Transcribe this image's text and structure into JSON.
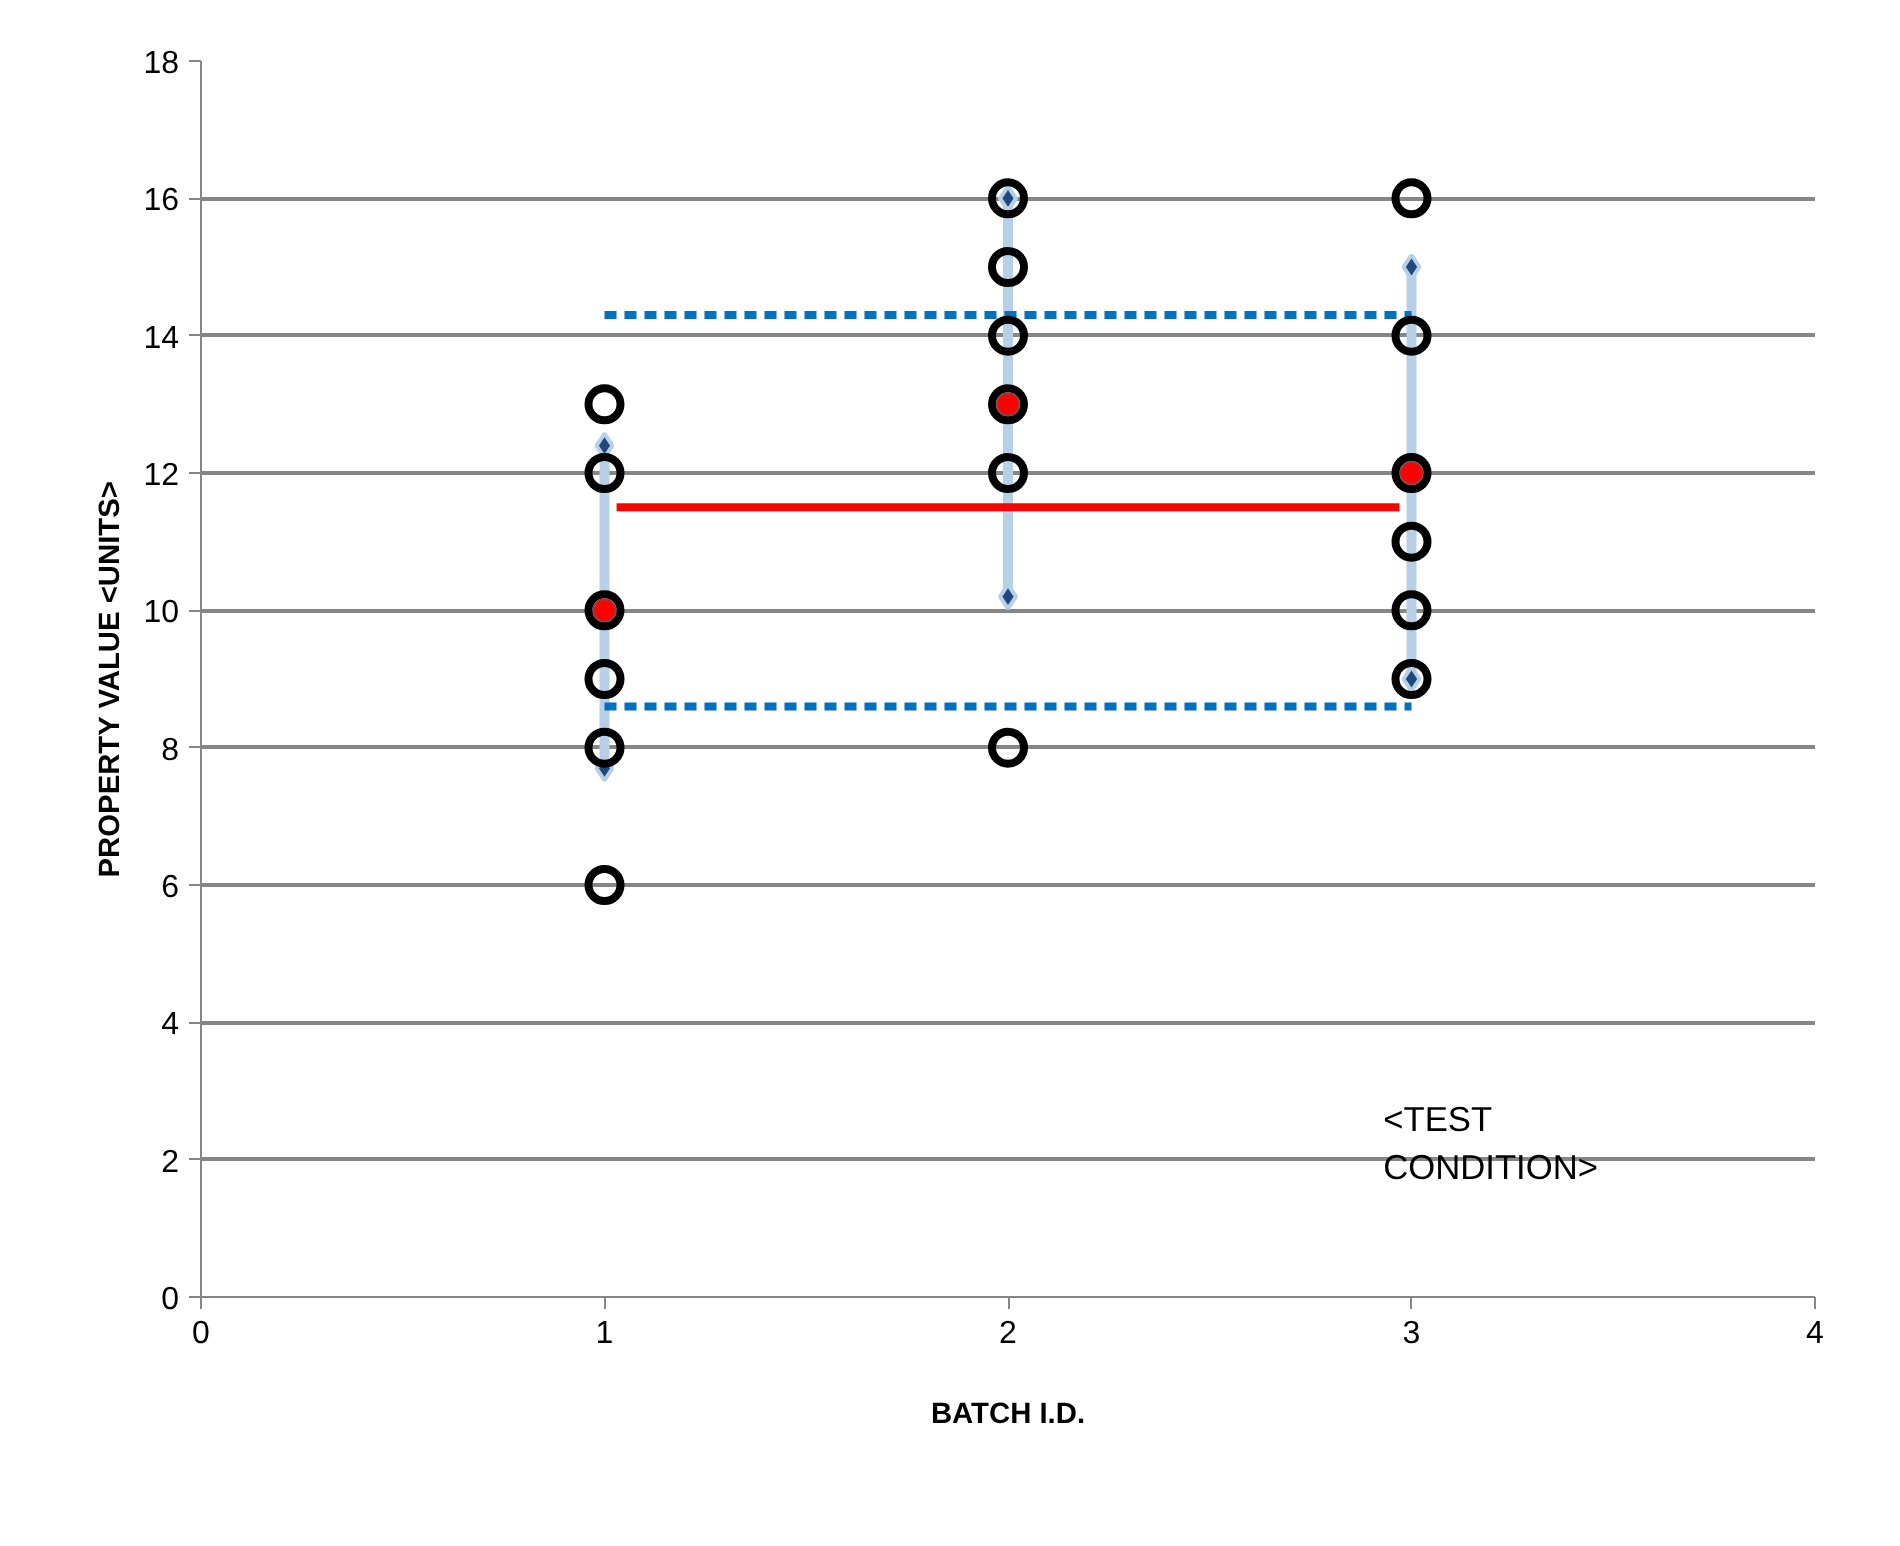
{
  "chart_data": {
    "type": "scatter",
    "xlabel": "BATCH I.D.",
    "ylabel": "PROPERTY VALUE <UNITS>",
    "xlim": [
      0,
      4
    ],
    "xticks": [
      0,
      1,
      2,
      3,
      4
    ],
    "ylim": [
      0,
      18
    ],
    "yticks": [
      0,
      2,
      4,
      6,
      8,
      10,
      12,
      14,
      16,
      18
    ],
    "grid": "y",
    "annotations": [
      "<TEST\nCONDITION>"
    ],
    "series": [
      {
        "type": "line",
        "marker": "diamond",
        "color": "#b8cfe8",
        "x": [
          1,
          1
        ],
        "values": [
          7.7,
          12.4
        ]
      },
      {
        "type": "line",
        "marker": "diamond",
        "color": "#b8cfe8",
        "x": [
          2,
          2
        ],
        "values": [
          10.2,
          16
        ]
      },
      {
        "type": "line",
        "marker": "diamond",
        "color": "#b8cfe8",
        "x": [
          3,
          3
        ],
        "values": [
          9.0,
          15.0
        ]
      },
      {
        "type": "line",
        "marker": "none",
        "color": "#ff0000",
        "x": [
          1.03,
          2.97
        ],
        "values": [
          11.5,
          11.5
        ]
      },
      {
        "type": "line",
        "marker": "none",
        "line_style": "dashed",
        "color": "#0070c0",
        "x": [
          1,
          3
        ],
        "values": [
          14.3,
          14.3
        ]
      },
      {
        "type": "line",
        "marker": "none",
        "line_style": "dashed",
        "color": "#0070c0",
        "x": [
          1,
          3
        ],
        "values": [
          8.6,
          8.6
        ]
      },
      {
        "marker": "circle",
        "color": "#000000",
        "x": [
          1,
          1,
          1,
          1,
          1,
          1,
          2,
          2,
          2,
          2,
          2,
          2,
          3,
          3,
          3,
          3,
          3,
          3
        ],
        "values": [
          13,
          12,
          10,
          9,
          8,
          6,
          16,
          15,
          14,
          13,
          12,
          8,
          16,
          14,
          12,
          11,
          10,
          9
        ]
      },
      {
        "marker": "circle",
        "color": "#ff0000",
        "x": [
          1,
          2,
          3
        ],
        "values": [
          10,
          13,
          12
        ]
      }
    ]
  }
}
